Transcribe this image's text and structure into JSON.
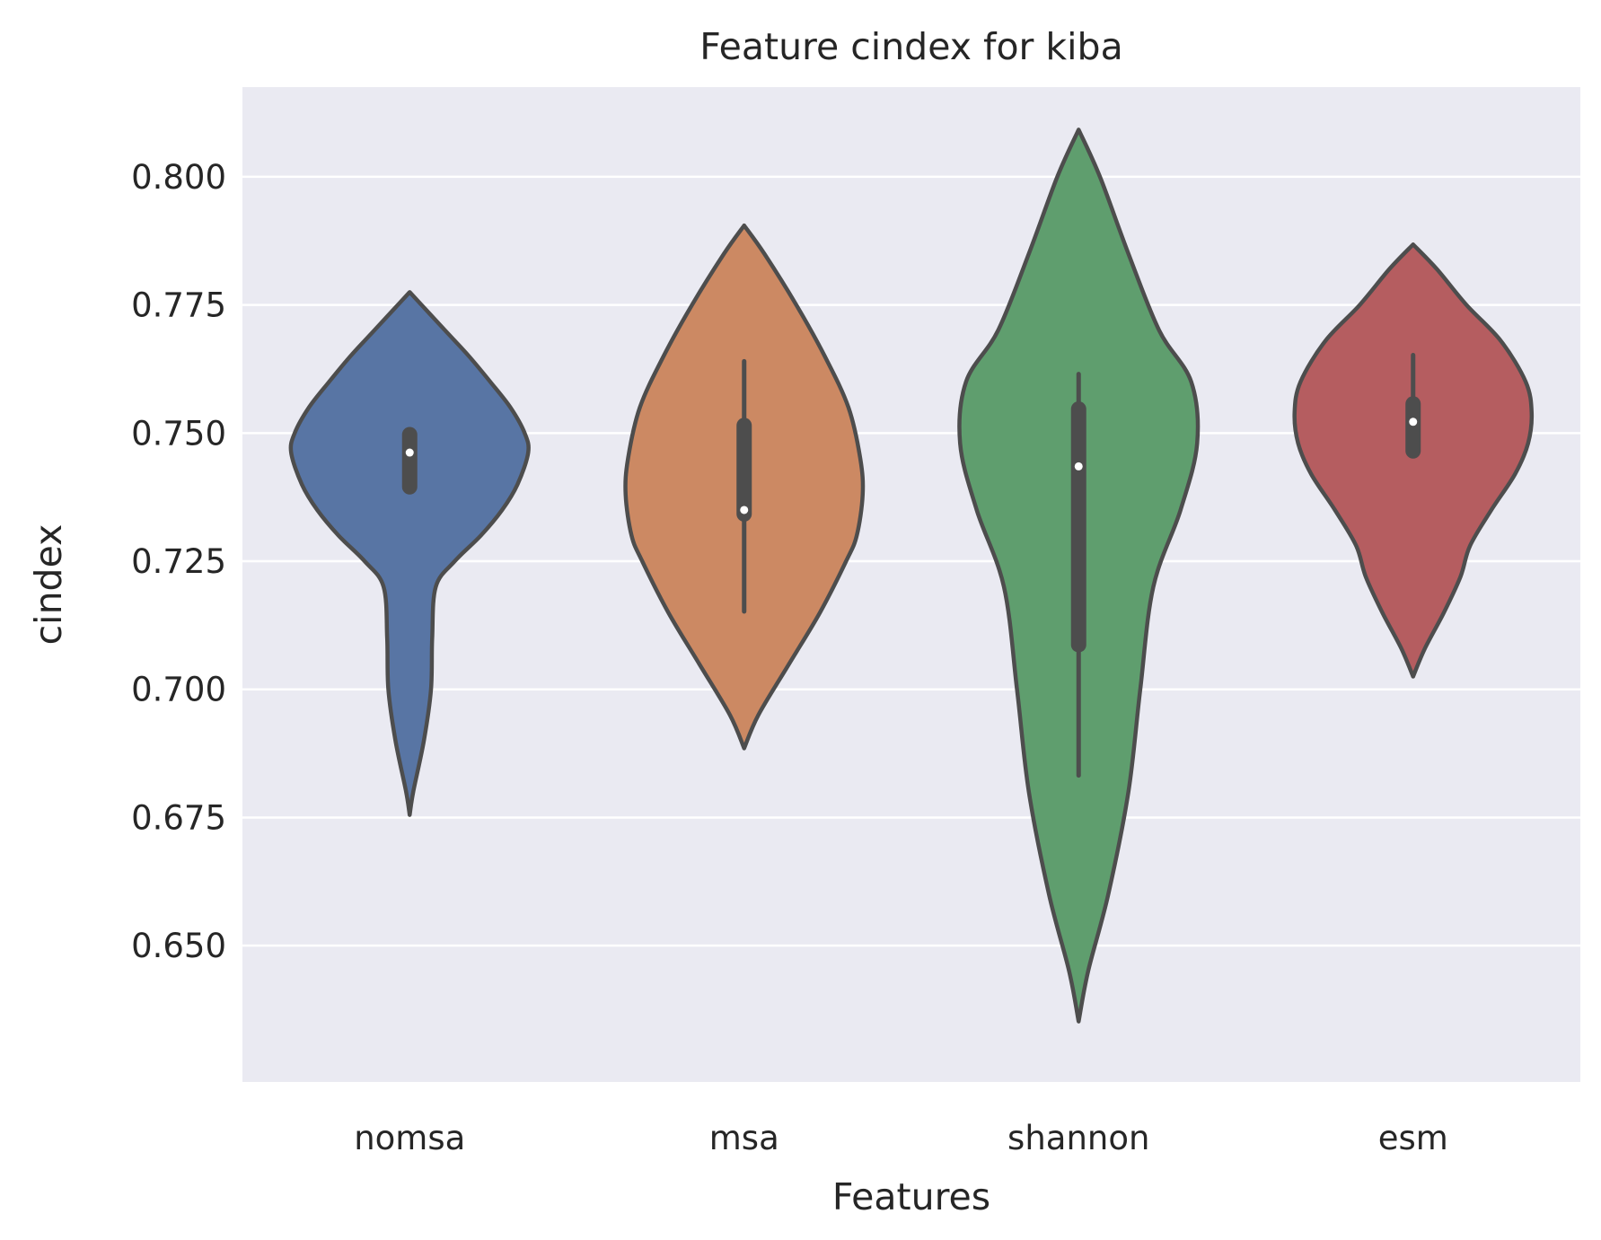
{
  "chart_data": {
    "type": "violin",
    "title": "Feature cindex for kiba",
    "xlabel": "Features",
    "ylabel": "cindex",
    "ylim": [
      0.6234,
      0.8175
    ],
    "yticks": [
      "0.650",
      "0.675",
      "0.700",
      "0.725",
      "0.750",
      "0.775",
      "0.800"
    ],
    "grid": true,
    "categories": [
      "nomsa",
      "msa",
      "shannon",
      "esm"
    ],
    "series": [
      {
        "category": "nomsa",
        "color": "#5875a4",
        "min": 0.6755,
        "max": 0.7775,
        "q1": 0.7395,
        "median": 0.7462,
        "q3": 0.7497,
        "whisker_low": 0.7395,
        "whisker_high": 0.7497,
        "density": [
          [
            0.6755,
            0.0
          ],
          [
            0.68,
            0.03
          ],
          [
            0.69,
            0.12
          ],
          [
            0.7,
            0.18
          ],
          [
            0.71,
            0.19
          ],
          [
            0.72,
            0.22
          ],
          [
            0.725,
            0.38
          ],
          [
            0.73,
            0.6
          ],
          [
            0.735,
            0.78
          ],
          [
            0.74,
            0.91
          ],
          [
            0.7462,
            1.0
          ],
          [
            0.75,
            0.97
          ],
          [
            0.755,
            0.85
          ],
          [
            0.76,
            0.68
          ],
          [
            0.765,
            0.5
          ],
          [
            0.77,
            0.3
          ],
          [
            0.774,
            0.14
          ],
          [
            0.7775,
            0.0
          ]
        ]
      },
      {
        "category": "msa",
        "color": "#cc8963",
        "min": 0.6885,
        "max": 0.7905,
        "q1": 0.7342,
        "median": 0.735,
        "q3": 0.7515,
        "whisker_low": 0.7152,
        "whisker_high": 0.764,
        "density": [
          [
            0.6885,
            0.0
          ],
          [
            0.695,
            0.12
          ],
          [
            0.705,
            0.38
          ],
          [
            0.715,
            0.64
          ],
          [
            0.725,
            0.86
          ],
          [
            0.73,
            0.95
          ],
          [
            0.738,
            1.0
          ],
          [
            0.745,
            0.98
          ],
          [
            0.755,
            0.88
          ],
          [
            0.765,
            0.68
          ],
          [
            0.775,
            0.44
          ],
          [
            0.785,
            0.17
          ],
          [
            0.7905,
            0.0
          ]
        ]
      },
      {
        "category": "shannon",
        "color": "#5f9e6e",
        "min": 0.6352,
        "max": 0.8092,
        "q1": 0.7087,
        "median": 0.7435,
        "q3": 0.7547,
        "whisker_low": 0.6832,
        "whisker_high": 0.7615,
        "density": [
          [
            0.6352,
            0.0
          ],
          [
            0.645,
            0.08
          ],
          [
            0.66,
            0.25
          ],
          [
            0.68,
            0.42
          ],
          [
            0.7,
            0.52
          ],
          [
            0.72,
            0.63
          ],
          [
            0.735,
            0.86
          ],
          [
            0.748,
            1.0
          ],
          [
            0.76,
            0.95
          ],
          [
            0.77,
            0.68
          ],
          [
            0.785,
            0.42
          ],
          [
            0.8,
            0.18
          ],
          [
            0.8092,
            0.0
          ]
        ]
      },
      {
        "category": "esm",
        "color": "#b55d60",
        "min": 0.7025,
        "max": 0.7868,
        "q1": 0.7465,
        "median": 0.7522,
        "q3": 0.7557,
        "whisker_low": 0.7465,
        "whisker_high": 0.7652,
        "density": [
          [
            0.7025,
            0.0
          ],
          [
            0.708,
            0.1
          ],
          [
            0.715,
            0.26
          ],
          [
            0.722,
            0.4
          ],
          [
            0.728,
            0.48
          ],
          [
            0.735,
            0.66
          ],
          [
            0.742,
            0.86
          ],
          [
            0.748,
            0.97
          ],
          [
            0.754,
            1.0
          ],
          [
            0.76,
            0.95
          ],
          [
            0.768,
            0.74
          ],
          [
            0.775,
            0.45
          ],
          [
            0.782,
            0.2
          ],
          [
            0.7868,
            0.0
          ]
        ]
      }
    ]
  }
}
